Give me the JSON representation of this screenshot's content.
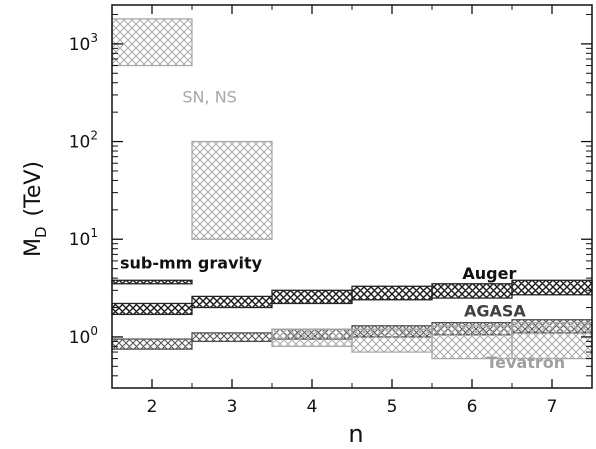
{
  "chart_data": {
    "type": "bar",
    "xlabel": "n",
    "ylabel_main": "M",
    "ylabel_sub": "D",
    "ylabel_unit": "(TeV)",
    "x_ticks": [
      2,
      3,
      4,
      5,
      6,
      7
    ],
    "x_range": [
      1.5,
      7.5
    ],
    "y_range": [
      0.3,
      2500
    ],
    "y_scale": "log",
    "y_ticks": [
      {
        "value": 1,
        "base": "10",
        "exp": "0"
      },
      {
        "value": 10,
        "base": "10",
        "exp": "1"
      },
      {
        "value": 100,
        "base": "10",
        "exp": "2"
      },
      {
        "value": 1000,
        "base": "10",
        "exp": "3"
      }
    ],
    "series": [
      {
        "name": "SN, NS",
        "color": "#a8a8a8",
        "hatch": "cross",
        "bands": [
          {
            "n": 2,
            "x0": 1.5,
            "x1": 2.5,
            "low": 600,
            "high": 1800
          },
          {
            "n": 3,
            "x0": 2.5,
            "x1": 3.5,
            "low": 10,
            "high": 100
          }
        ]
      },
      {
        "name": "sub-mm gravity",
        "color": "#222222",
        "hatch": "cross",
        "bands": [
          {
            "n": 2,
            "x0": 1.5,
            "x1": 2.5,
            "low": 3.5,
            "high": 3.8
          }
        ]
      },
      {
        "name": "Auger",
        "color": "#222222",
        "hatch": "cross",
        "bands": [
          {
            "n": 2,
            "x0": 1.5,
            "x1": 2.5,
            "low": 1.7,
            "high": 2.2
          },
          {
            "n": 3,
            "x0": 2.5,
            "x1": 3.5,
            "low": 2.0,
            "high": 2.6
          },
          {
            "n": 4,
            "x0": 3.5,
            "x1": 4.5,
            "low": 2.2,
            "high": 3.0
          },
          {
            "n": 5,
            "x0": 4.5,
            "x1": 5.5,
            "low": 2.4,
            "high": 3.3
          },
          {
            "n": 6,
            "x0": 5.5,
            "x1": 6.5,
            "low": 2.5,
            "high": 3.5
          },
          {
            "n": 7,
            "x0": 6.5,
            "x1": 7.5,
            "low": 2.7,
            "high": 3.8
          }
        ]
      },
      {
        "name": "AGASA",
        "color": "#505050",
        "hatch": "cross",
        "bands": [
          {
            "n": 2,
            "x0": 1.5,
            "x1": 2.5,
            "low": 0.75,
            "high": 0.95
          },
          {
            "n": 3,
            "x0": 2.5,
            "x1": 3.5,
            "low": 0.9,
            "high": 1.1
          },
          {
            "n": 4,
            "x0": 3.5,
            "x1": 4.5,
            "low": 0.95,
            "high": 1.2
          },
          {
            "n": 5,
            "x0": 4.5,
            "x1": 5.5,
            "low": 1.0,
            "high": 1.3
          },
          {
            "n": 6,
            "x0": 5.5,
            "x1": 6.5,
            "low": 1.05,
            "high": 1.4
          },
          {
            "n": 7,
            "x0": 6.5,
            "x1": 7.5,
            "low": 1.1,
            "high": 1.5
          }
        ]
      },
      {
        "name": "Tevatron",
        "color": "#a8a8a8",
        "hatch": "cross",
        "bands": [
          {
            "n": 4,
            "x0": 3.5,
            "x1": 4.5,
            "low": 0.8,
            "high": 1.2
          },
          {
            "n": 5,
            "x0": 4.5,
            "x1": 5.5,
            "low": 0.7,
            "high": 1.2
          },
          {
            "n": 6,
            "x0": 5.5,
            "x1": 6.5,
            "low": 0.6,
            "high": 1.3
          },
          {
            "n": 7,
            "x0": 6.5,
            "x1": 7.5,
            "low": 0.6,
            "high": 1.4
          }
        ]
      }
    ],
    "annotations": [
      {
        "text": "SN, NS",
        "color": "#a8a8a8",
        "weight": "normal",
        "x": 2.38,
        "y": 250
      },
      {
        "text": "sub-mm gravity",
        "color": "#111111",
        "weight": "bold",
        "x": 1.6,
        "y": 5.0
      },
      {
        "text": "Auger",
        "color": "#111111",
        "weight": "bold",
        "x": 5.88,
        "y": 3.9
      },
      {
        "text": "AGASA",
        "color": "#404040",
        "weight": "bold",
        "x": 5.9,
        "y": 1.62
      },
      {
        "text": "Tevatron",
        "color": "#a0a0a0",
        "weight": "bold",
        "x": 6.18,
        "y": 0.48
      }
    ]
  }
}
